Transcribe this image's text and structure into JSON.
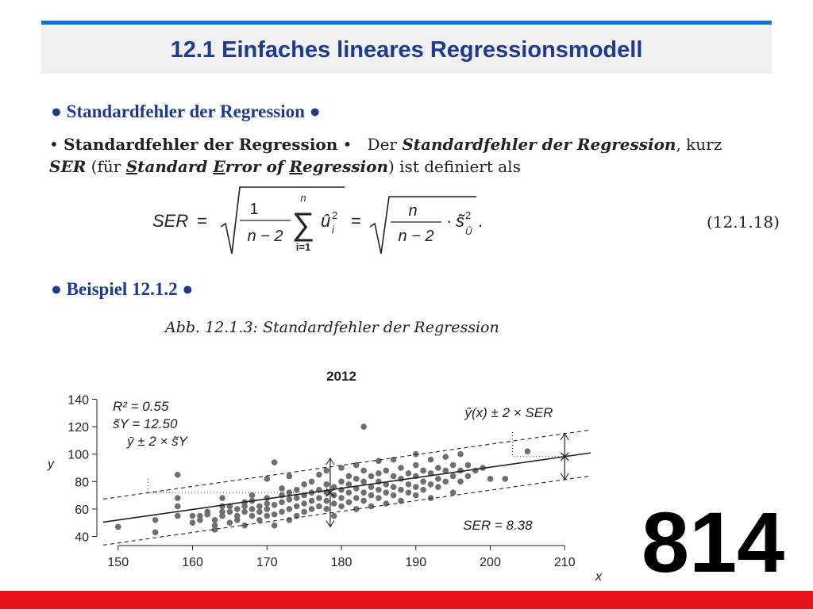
{
  "header": {
    "title": "12.1 Einfaches lineares Regressionsmodell"
  },
  "sections": {
    "ser_heading": "Standardfehler der Regression",
    "example_heading": "Beispiel 12.1.2"
  },
  "definition": {
    "lead": "Standardfehler der Regression",
    "text_1": "Der",
    "term": "Standardfehler der Regression",
    "text_2": ", kurz",
    "abbr": "SER",
    "paren_open": " (für ",
    "s_letter": "S",
    "s_rest": "tandard ",
    "e_letter": "E",
    "e_rest": "rror of ",
    "r_letter": "R",
    "r_rest": "egression",
    "paren_close": ")",
    "tail": " ist definiert als"
  },
  "equation": {
    "lhs": "SER",
    "eq": "=",
    "frac1_num": "1",
    "frac1_den": "n − 2",
    "sum_top": "n",
    "sum_bottom": "i=1",
    "summand": "û",
    "summand_sub": "i",
    "summand_sup": "2",
    "frac2_num": "n",
    "frac2_den": "n − 2",
    "dot": "·",
    "s_tilde": "s̃",
    "s_sub": "Û",
    "s_sup": "2",
    "period": ".",
    "number": "(12.1.18)"
  },
  "figure_caption": "Abb. 12.1.3: Standardfehler der Regression",
  "page_number": "814",
  "colors": {
    "accent_blue": "#1e6fc4",
    "title_blue": "#1f3a8c",
    "footer_red": "#e8121a",
    "points": "#6f6f6f"
  },
  "chart_data": {
    "type": "scatter",
    "title": "2012",
    "xlabel": "x",
    "ylabel": "y",
    "xlim": [
      148,
      212
    ],
    "ylim": [
      38,
      142
    ],
    "xticks": [
      150,
      160,
      170,
      180,
      190,
      200,
      210
    ],
    "yticks": [
      40,
      60,
      80,
      100,
      120,
      140
    ],
    "regression": {
      "intercept": -63.5,
      "slope": 0.77
    },
    "ser": 8.38,
    "mean_x": 178.5,
    "mean_y": 72,
    "sy": 12.5,
    "marked_x": 210,
    "annotations": {
      "r2": "R² = 0.55",
      "sy": "s̃Y = 12.50",
      "ybar_band": "ȳ ± 2 × s̃Y",
      "yhat_band": "ŷ(x) ± 2 × SER",
      "ser": "SER = 8.38"
    },
    "points": [
      [
        150,
        47
      ],
      [
        155,
        52
      ],
      [
        155,
        43
      ],
      [
        158,
        85
      ],
      [
        158,
        68
      ],
      [
        158,
        62
      ],
      [
        158,
        55
      ],
      [
        160,
        55
      ],
      [
        160,
        50
      ],
      [
        161,
        55
      ],
      [
        161,
        52
      ],
      [
        162,
        56
      ],
      [
        162,
        58
      ],
      [
        163,
        45
      ],
      [
        163,
        52
      ],
      [
        163,
        48
      ],
      [
        164,
        55
      ],
      [
        164,
        62
      ],
      [
        164,
        68
      ],
      [
        164,
        58
      ],
      [
        165,
        50
      ],
      [
        165,
        58
      ],
      [
        165,
        62
      ],
      [
        166,
        55
      ],
      [
        166,
        60
      ],
      [
        166,
        52
      ],
      [
        167,
        48
      ],
      [
        167,
        58
      ],
      [
        167,
        62
      ],
      [
        167,
        65
      ],
      [
        168,
        55
      ],
      [
        168,
        60
      ],
      [
        168,
        66
      ],
      [
        168,
        70
      ],
      [
        169,
        52
      ],
      [
        169,
        58
      ],
      [
        169,
        62
      ],
      [
        170,
        55
      ],
      [
        170,
        60
      ],
      [
        170,
        64
      ],
      [
        170,
        68
      ],
      [
        170,
        82
      ],
      [
        171,
        94
      ],
      [
        171,
        48
      ],
      [
        171,
        56
      ],
      [
        171,
        63
      ],
      [
        172,
        58
      ],
      [
        172,
        65
      ],
      [
        172,
        70
      ],
      [
        172,
        75
      ],
      [
        173,
        52
      ],
      [
        173,
        60
      ],
      [
        173,
        67
      ],
      [
        173,
        72
      ],
      [
        173,
        84
      ],
      [
        174,
        55
      ],
      [
        174,
        62
      ],
      [
        174,
        68
      ],
      [
        174,
        74
      ],
      [
        175,
        58
      ],
      [
        175,
        64
      ],
      [
        175,
        70
      ],
      [
        175,
        78
      ],
      [
        176,
        60
      ],
      [
        176,
        66
      ],
      [
        176,
        72
      ],
      [
        176,
        80
      ],
      [
        177,
        62
      ],
      [
        177,
        68
      ],
      [
        177,
        74
      ],
      [
        177,
        85
      ],
      [
        178,
        60
      ],
      [
        178,
        66
      ],
      [
        178,
        72
      ],
      [
        178,
        78
      ],
      [
        178,
        88
      ],
      [
        179,
        55
      ],
      [
        179,
        64
      ],
      [
        179,
        70
      ],
      [
        179,
        76
      ],
      [
        180,
        62
      ],
      [
        180,
        68
      ],
      [
        180,
        74
      ],
      [
        180,
        80
      ],
      [
        180,
        90
      ],
      [
        181,
        65
      ],
      [
        181,
        72
      ],
      [
        181,
        78
      ],
      [
        181,
        84
      ],
      [
        182,
        60
      ],
      [
        182,
        68
      ],
      [
        182,
        75
      ],
      [
        182,
        82
      ],
      [
        182,
        92
      ],
      [
        183,
        120
      ],
      [
        183,
        66
      ],
      [
        183,
        72
      ],
      [
        183,
        80
      ],
      [
        183,
        88
      ],
      [
        184,
        62
      ],
      [
        184,
        70
      ],
      [
        184,
        76
      ],
      [
        184,
        84
      ],
      [
        185,
        68
      ],
      [
        185,
        74
      ],
      [
        185,
        80
      ],
      [
        185,
        86
      ],
      [
        185,
        95
      ],
      [
        186,
        64
      ],
      [
        186,
        72
      ],
      [
        186,
        78
      ],
      [
        186,
        88
      ],
      [
        187,
        70
      ],
      [
        187,
        76
      ],
      [
        187,
        84
      ],
      [
        187,
        96
      ],
      [
        188,
        66
      ],
      [
        188,
        74
      ],
      [
        188,
        82
      ],
      [
        188,
        90
      ],
      [
        189,
        72
      ],
      [
        189,
        78
      ],
      [
        189,
        86
      ],
      [
        190,
        70
      ],
      [
        190,
        76
      ],
      [
        190,
        84
      ],
      [
        190,
        92
      ],
      [
        190,
        100
      ],
      [
        191,
        74
      ],
      [
        191,
        80
      ],
      [
        191,
        88
      ],
      [
        192,
        68
      ],
      [
        192,
        78
      ],
      [
        192,
        86
      ],
      [
        192,
        96
      ],
      [
        193,
        76
      ],
      [
        193,
        82
      ],
      [
        193,
        90
      ],
      [
        194,
        80
      ],
      [
        194,
        88
      ],
      [
        194,
        98
      ],
      [
        195,
        72
      ],
      [
        195,
        84
      ],
      [
        195,
        92
      ],
      [
        196,
        80
      ],
      [
        196,
        88
      ],
      [
        196,
        100
      ],
      [
        197,
        84
      ],
      [
        197,
        92
      ],
      [
        198,
        88
      ],
      [
        199,
        90
      ],
      [
        200,
        82
      ],
      [
        202,
        82
      ],
      [
        205,
        102
      ]
    ]
  }
}
